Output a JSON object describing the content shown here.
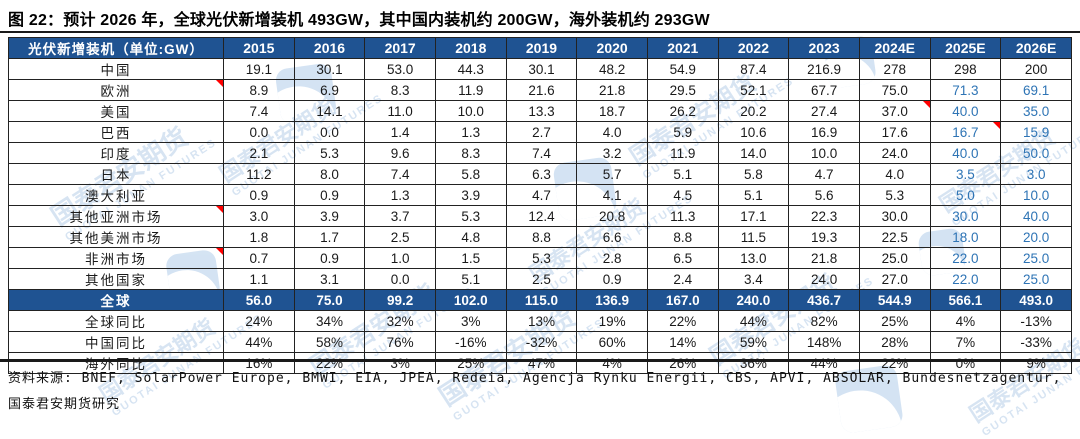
{
  "title": "图 22：预计 2026 年，全球光伏新增装机 493GW，其中国内装机约 200GW，海外装机约 293GW",
  "source": "资料来源: BNEF, SolarPower Europe, BMWI, EIA, JPEA, Redeia, Agencja Rynku Energii, CBS, APVI, ABSOLAR, Bundesnetzagentur, 国泰君安期货研究",
  "watermark": {
    "cn": "国泰君安期货",
    "en": "GUOTAI JUNAN FUTURES"
  },
  "colors": {
    "header_bg": "#1F5392",
    "total_row_bg": "#1F5392",
    "forecast_text_blue": "#2E74B5",
    "note_marker_red": "#FF0000",
    "watermark_blue": "#B7CFE9"
  },
  "chart_data": {
    "type": "table",
    "title": "图 22：预计 2026 年，全球光伏新增装机 493GW，其中国内装机约 200GW，海外装机约 293GW",
    "unit": "GW",
    "columns": [
      "光伏新增装机（单位:GW）",
      "2015",
      "2016",
      "2017",
      "2018",
      "2019",
      "2020",
      "2021",
      "2022",
      "2023",
      "2024E",
      "2025E",
      "2026E"
    ],
    "rows": [
      {
        "type": "country",
        "label": "中国",
        "values": [
          "19.1",
          "30.1",
          "53.0",
          "44.3",
          "30.1",
          "48.2",
          "54.9",
          "87.4",
          "216.9",
          "278",
          "298",
          "200"
        ],
        "blue": [],
        "notes": []
      },
      {
        "type": "country",
        "label": "欧洲",
        "values": [
          "8.9",
          "6.9",
          "8.3",
          "11.9",
          "21.6",
          "21.8",
          "29.5",
          "52.1",
          "67.7",
          "75.0",
          "71.3",
          "69.1"
        ],
        "blue": [
          10,
          11
        ],
        "notes": [
          -1
        ]
      },
      {
        "type": "country",
        "label": "美国",
        "values": [
          "7.4",
          "14.1",
          "11.0",
          "10.0",
          "13.3",
          "18.7",
          "26.2",
          "20.2",
          "27.4",
          "37.0",
          "40.0",
          "35.0"
        ],
        "blue": [
          10,
          11
        ],
        "notes": [
          9
        ]
      },
      {
        "type": "country",
        "label": "巴西",
        "values": [
          "0.0",
          "0.0",
          "1.4",
          "1.3",
          "2.7",
          "4.0",
          "5.9",
          "10.6",
          "16.9",
          "17.6",
          "16.7",
          "15.9"
        ],
        "blue": [
          10,
          11
        ],
        "notes": [
          10
        ]
      },
      {
        "type": "country",
        "label": "印度",
        "values": [
          "2.1",
          "5.3",
          "9.6",
          "8.3",
          "7.4",
          "3.2",
          "11.9",
          "14.0",
          "10.0",
          "24.0",
          "40.0",
          "50.0"
        ],
        "blue": [
          10,
          11
        ],
        "notes": []
      },
      {
        "type": "country",
        "label": "日本",
        "values": [
          "11.2",
          "8.0",
          "7.4",
          "5.8",
          "6.3",
          "5.7",
          "5.1",
          "5.8",
          "4.7",
          "4.0",
          "3.5",
          "3.0"
        ],
        "blue": [
          10,
          11
        ],
        "notes": []
      },
      {
        "type": "country",
        "label": "澳大利亚",
        "values": [
          "0.9",
          "0.9",
          "1.3",
          "3.9",
          "4.7",
          "4.1",
          "4.5",
          "5.1",
          "5.6",
          "5.3",
          "5.0",
          "10.0"
        ],
        "blue": [
          10,
          11
        ],
        "notes": []
      },
      {
        "type": "country",
        "label": "其他亚洲市场",
        "values": [
          "3.0",
          "3.9",
          "3.7",
          "5.3",
          "12.4",
          "20.8",
          "11.3",
          "17.1",
          "22.3",
          "30.0",
          "30.0",
          "40.0"
        ],
        "blue": [
          10,
          11
        ],
        "notes": [
          -1
        ]
      },
      {
        "type": "country",
        "label": "其他美洲市场",
        "values": [
          "1.8",
          "1.7",
          "2.5",
          "4.8",
          "8.8",
          "6.6",
          "8.8",
          "11.5",
          "19.3",
          "22.5",
          "18.0",
          "20.0"
        ],
        "blue": [
          10,
          11
        ],
        "notes": []
      },
      {
        "type": "country",
        "label": "非洲市场",
        "values": [
          "0.7",
          "0.9",
          "1.0",
          "1.5",
          "5.3",
          "2.8",
          "6.5",
          "13.0",
          "21.8",
          "25.0",
          "22.0",
          "25.0"
        ],
        "blue": [
          10,
          11
        ],
        "notes": [
          -1
        ]
      },
      {
        "type": "country",
        "label": "其他国家",
        "values": [
          "1.1",
          "3.1",
          "0.0",
          "5.1",
          "2.5",
          "0.9",
          "2.4",
          "3.4",
          "24.0",
          "27.0",
          "22.0",
          "25.0"
        ],
        "blue": [
          10,
          11
        ],
        "notes": []
      },
      {
        "type": "total",
        "label": "全球",
        "values": [
          "56.0",
          "75.0",
          "99.2",
          "102.0",
          "115.0",
          "136.9",
          "167.0",
          "240.0",
          "436.7",
          "544.9",
          "566.1",
          "493.0"
        ],
        "blue": [],
        "notes": []
      },
      {
        "type": "pct",
        "label": "全球同比",
        "values": [
          "24%",
          "34%",
          "32%",
          "3%",
          "13%",
          "19%",
          "22%",
          "44%",
          "82%",
          "25%",
          "4%",
          "-13%"
        ],
        "blue": [],
        "notes": []
      },
      {
        "type": "pct",
        "label": "中国同比",
        "values": [
          "44%",
          "58%",
          "76%",
          "-16%",
          "-32%",
          "60%",
          "14%",
          "59%",
          "148%",
          "28%",
          "7%",
          "-33%"
        ],
        "blue": [],
        "notes": []
      },
      {
        "type": "pct",
        "label": "海外同比",
        "values": [
          "16%",
          "22%",
          "3%",
          "25%",
          "47%",
          "4%",
          "26%",
          "36%",
          "44%",
          "22%",
          "0%",
          "9%"
        ],
        "blue": [],
        "notes": []
      }
    ]
  }
}
